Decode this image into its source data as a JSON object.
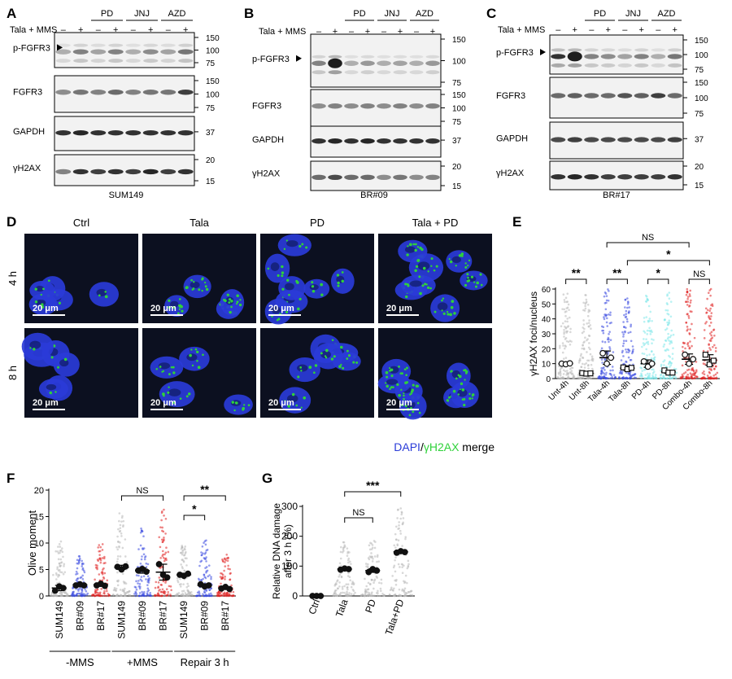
{
  "panels": {
    "A": {
      "letter": "A",
      "cell": "SUM149",
      "treat": "Tala + MMS",
      "groups": [
        "PD",
        "JNJ",
        "AZD"
      ],
      "signs": [
        "–",
        "+",
        "–",
        "+",
        "–",
        "+",
        "–",
        "+"
      ],
      "blots": [
        {
          "label": "p-FGFR3",
          "arrow": true,
          "mw": [
            "150",
            "100",
            "75"
          ]
        },
        {
          "label": "FGFR3",
          "mw": [
            "150",
            "100",
            "75"
          ]
        },
        {
          "label": "GAPDH",
          "mw": [
            "37"
          ]
        },
        {
          "label": "γH2AX",
          "mw": [
            "20",
            "15"
          ]
        }
      ]
    },
    "B": {
      "letter": "B",
      "cell": "BR#09",
      "treat": "Tala + MMS",
      "groups": [
        "PD",
        "JNJ",
        "AZD"
      ],
      "signs": [
        "–",
        "+",
        "–",
        "+",
        "–",
        "+",
        "–",
        "+"
      ],
      "blots": [
        {
          "label": "p-FGFR3",
          "arrow": true,
          "mw": [
            "150",
            "100",
            "75"
          ]
        },
        {
          "label": "FGFR3",
          "mw": [
            "150",
            "100",
            "75"
          ]
        },
        {
          "label": "GAPDH",
          "mw": [
            "37"
          ]
        },
        {
          "label": "γH2AX",
          "mw": [
            "20",
            "15"
          ]
        }
      ]
    },
    "C": {
      "letter": "C",
      "cell": "BR#17",
      "treat": "Tala + MMS",
      "groups": [
        "PD",
        "JNJ",
        "AZD"
      ],
      "signs": [
        "–",
        "+",
        "–",
        "+",
        "–",
        "+",
        "–",
        "+"
      ],
      "blots": [
        {
          "label": "p-FGFR3",
          "arrow": true,
          "mw": [
            "150",
            "100",
            "75"
          ]
        },
        {
          "label": "FGFR3",
          "mw": [
            "150",
            "100",
            "75"
          ]
        },
        {
          "label": "GAPDH",
          "mw": [
            "37"
          ]
        },
        {
          "label": "γH2AX",
          "mw": [
            "20",
            "15"
          ]
        }
      ]
    },
    "D": {
      "letter": "D",
      "columns": [
        "Ctrl",
        "Tala",
        "PD",
        "Tala + PD"
      ],
      "rows": [
        "4 h",
        "8 h"
      ],
      "scale_bar": "20 μm",
      "legend": {
        "dapi": "DAPI",
        "slash": "/",
        "gh2ax": "γH2AX",
        "merge": " merge"
      },
      "colors": {
        "dapi": "#2a3bd8",
        "gh2ax": "#2fd23a",
        "background": "#0c1020"
      }
    },
    "E": {
      "letter": "E"
    },
    "F": {
      "letter": "F"
    },
    "G": {
      "letter": "G"
    }
  },
  "chart_data": [
    {
      "panel": "E",
      "type": "scatter",
      "ylabel": "γH2AX foci/nucleus",
      "ylim": [
        0,
        60
      ],
      "yticks": [
        0,
        10,
        20,
        30,
        40,
        50,
        60
      ],
      "categories": [
        "Unt-4h",
        "Unt-8h",
        "Tala-4h",
        "Tala-8h",
        "PD-4h",
        "PD-8h",
        "Combo-4h",
        "Combo-8h"
      ],
      "colors": [
        "#b8b8b8",
        "#b8b8b8",
        "#3848e0",
        "#3848e0",
        "#7fe8ea",
        "#7fe8ea",
        "#e02020",
        "#e02020"
      ],
      "markers": [
        "circle",
        "square",
        "circle",
        "square",
        "circle",
        "square",
        "circle",
        "square"
      ],
      "means": [
        10,
        3.5,
        14,
        7,
        10,
        4.5,
        13,
        12.5
      ],
      "sd": [
        0,
        0,
        4.5,
        1.5,
        2.5,
        1,
        3.5,
        3.5
      ],
      "replicates": [
        [
          10,
          9.6,
          10.2
        ],
        [
          3.7,
          3.3,
          3.5
        ],
        [
          17,
          10,
          14
        ],
        [
          7.5,
          6.3,
          7.2
        ],
        [
          11.5,
          8,
          10
        ],
        [
          5.5,
          4,
          4
        ],
        [
          16,
          10,
          13
        ],
        [
          16,
          9.5,
          12
        ]
      ],
      "point_spread_max": [
        58,
        56,
        60,
        54,
        56,
        60,
        60,
        60
      ],
      "comparisons": [
        {
          "from": 0,
          "to": 1,
          "label": "**"
        },
        {
          "from": 2,
          "to": 3,
          "label": "**"
        },
        {
          "from": 4,
          "to": 5,
          "label": "*"
        },
        {
          "from": 6,
          "to": 7,
          "label": "NS"
        },
        {
          "from": 2,
          "to": 6,
          "label": "NS"
        },
        {
          "from": 3,
          "to": 7,
          "label": "*"
        }
      ]
    },
    {
      "panel": "F",
      "type": "scatter",
      "ylabel": "Olive moment",
      "ylim": [
        0,
        20
      ],
      "yticks": [
        0,
        5,
        10,
        15,
        20
      ],
      "categories": [
        "SUM149",
        "BR#09",
        "BR#17",
        "SUM149",
        "BR#09",
        "BR#17",
        "SUM149",
        "BR#09",
        "BR#17"
      ],
      "colors": [
        "#b8b8b8",
        "#3848e0",
        "#e02020",
        "#b8b8b8",
        "#3848e0",
        "#e02020",
        "#b8b8b8",
        "#3848e0",
        "#e02020"
      ],
      "means": [
        1.5,
        2.1,
        2.1,
        5.4,
        4.8,
        4.5,
        4,
        2,
        1.5
      ],
      "sd": [
        0.5,
        0.3,
        0.3,
        0.4,
        0.5,
        1.5,
        0.3,
        0.3,
        0.2
      ],
      "replicates": [
        [
          1,
          1.8,
          1.5
        ],
        [
          2,
          2.2,
          2
        ],
        [
          2,
          2.3,
          1.9
        ],
        [
          5.5,
          5,
          5.6
        ],
        [
          4.8,
          5.1,
          4.6
        ],
        [
          6,
          4,
          3.5
        ],
        [
          4,
          3.8,
          4.2
        ],
        [
          2.2,
          1.8,
          2
        ],
        [
          1.4,
          1.7,
          1.3
        ]
      ],
      "point_spread_max": [
        10.5,
        7.5,
        10,
        16,
        13,
        17,
        9.5,
        10.5,
        8
      ],
      "groups": [
        {
          "label": "-MMS",
          "from": 0,
          "to": 2
        },
        {
          "label": "+MMS",
          "from": 3,
          "to": 5
        },
        {
          "label": "Repair 3 h",
          "from": 6,
          "to": 8
        }
      ],
      "comparisons": [
        {
          "from": 3,
          "to": 5,
          "label": "NS"
        },
        {
          "from": 6,
          "to": 7,
          "label": "*"
        },
        {
          "from": 6,
          "to": 8,
          "label": "**"
        }
      ]
    },
    {
      "panel": "G",
      "type": "scatter",
      "ylabel": [
        "Relative DNA damage",
        "after 3 h (%)"
      ],
      "ylim": [
        0,
        300
      ],
      "yticks": [
        0,
        100,
        200,
        300
      ],
      "categories": [
        "Ctrl",
        "Tala",
        "PD",
        "Tala+PD"
      ],
      "colors": [
        "#1a1a1a",
        "#b8b8b8",
        "#b8b8b8",
        "#b8b8b8"
      ],
      "means": [
        0,
        90,
        85,
        148
      ],
      "sd": [
        0,
        4,
        6,
        4
      ],
      "replicates": [
        [
          0,
          0,
          0
        ],
        [
          88,
          92,
          90
        ],
        [
          80,
          90,
          85
        ],
        [
          145,
          150,
          147
        ]
      ],
      "point_spread_max": [
        0,
        180,
        185,
        295
      ],
      "comparisons": [
        {
          "from": 1,
          "to": 2,
          "label": "NS"
        },
        {
          "from": 1,
          "to": 3,
          "label": "***"
        }
      ]
    }
  ]
}
